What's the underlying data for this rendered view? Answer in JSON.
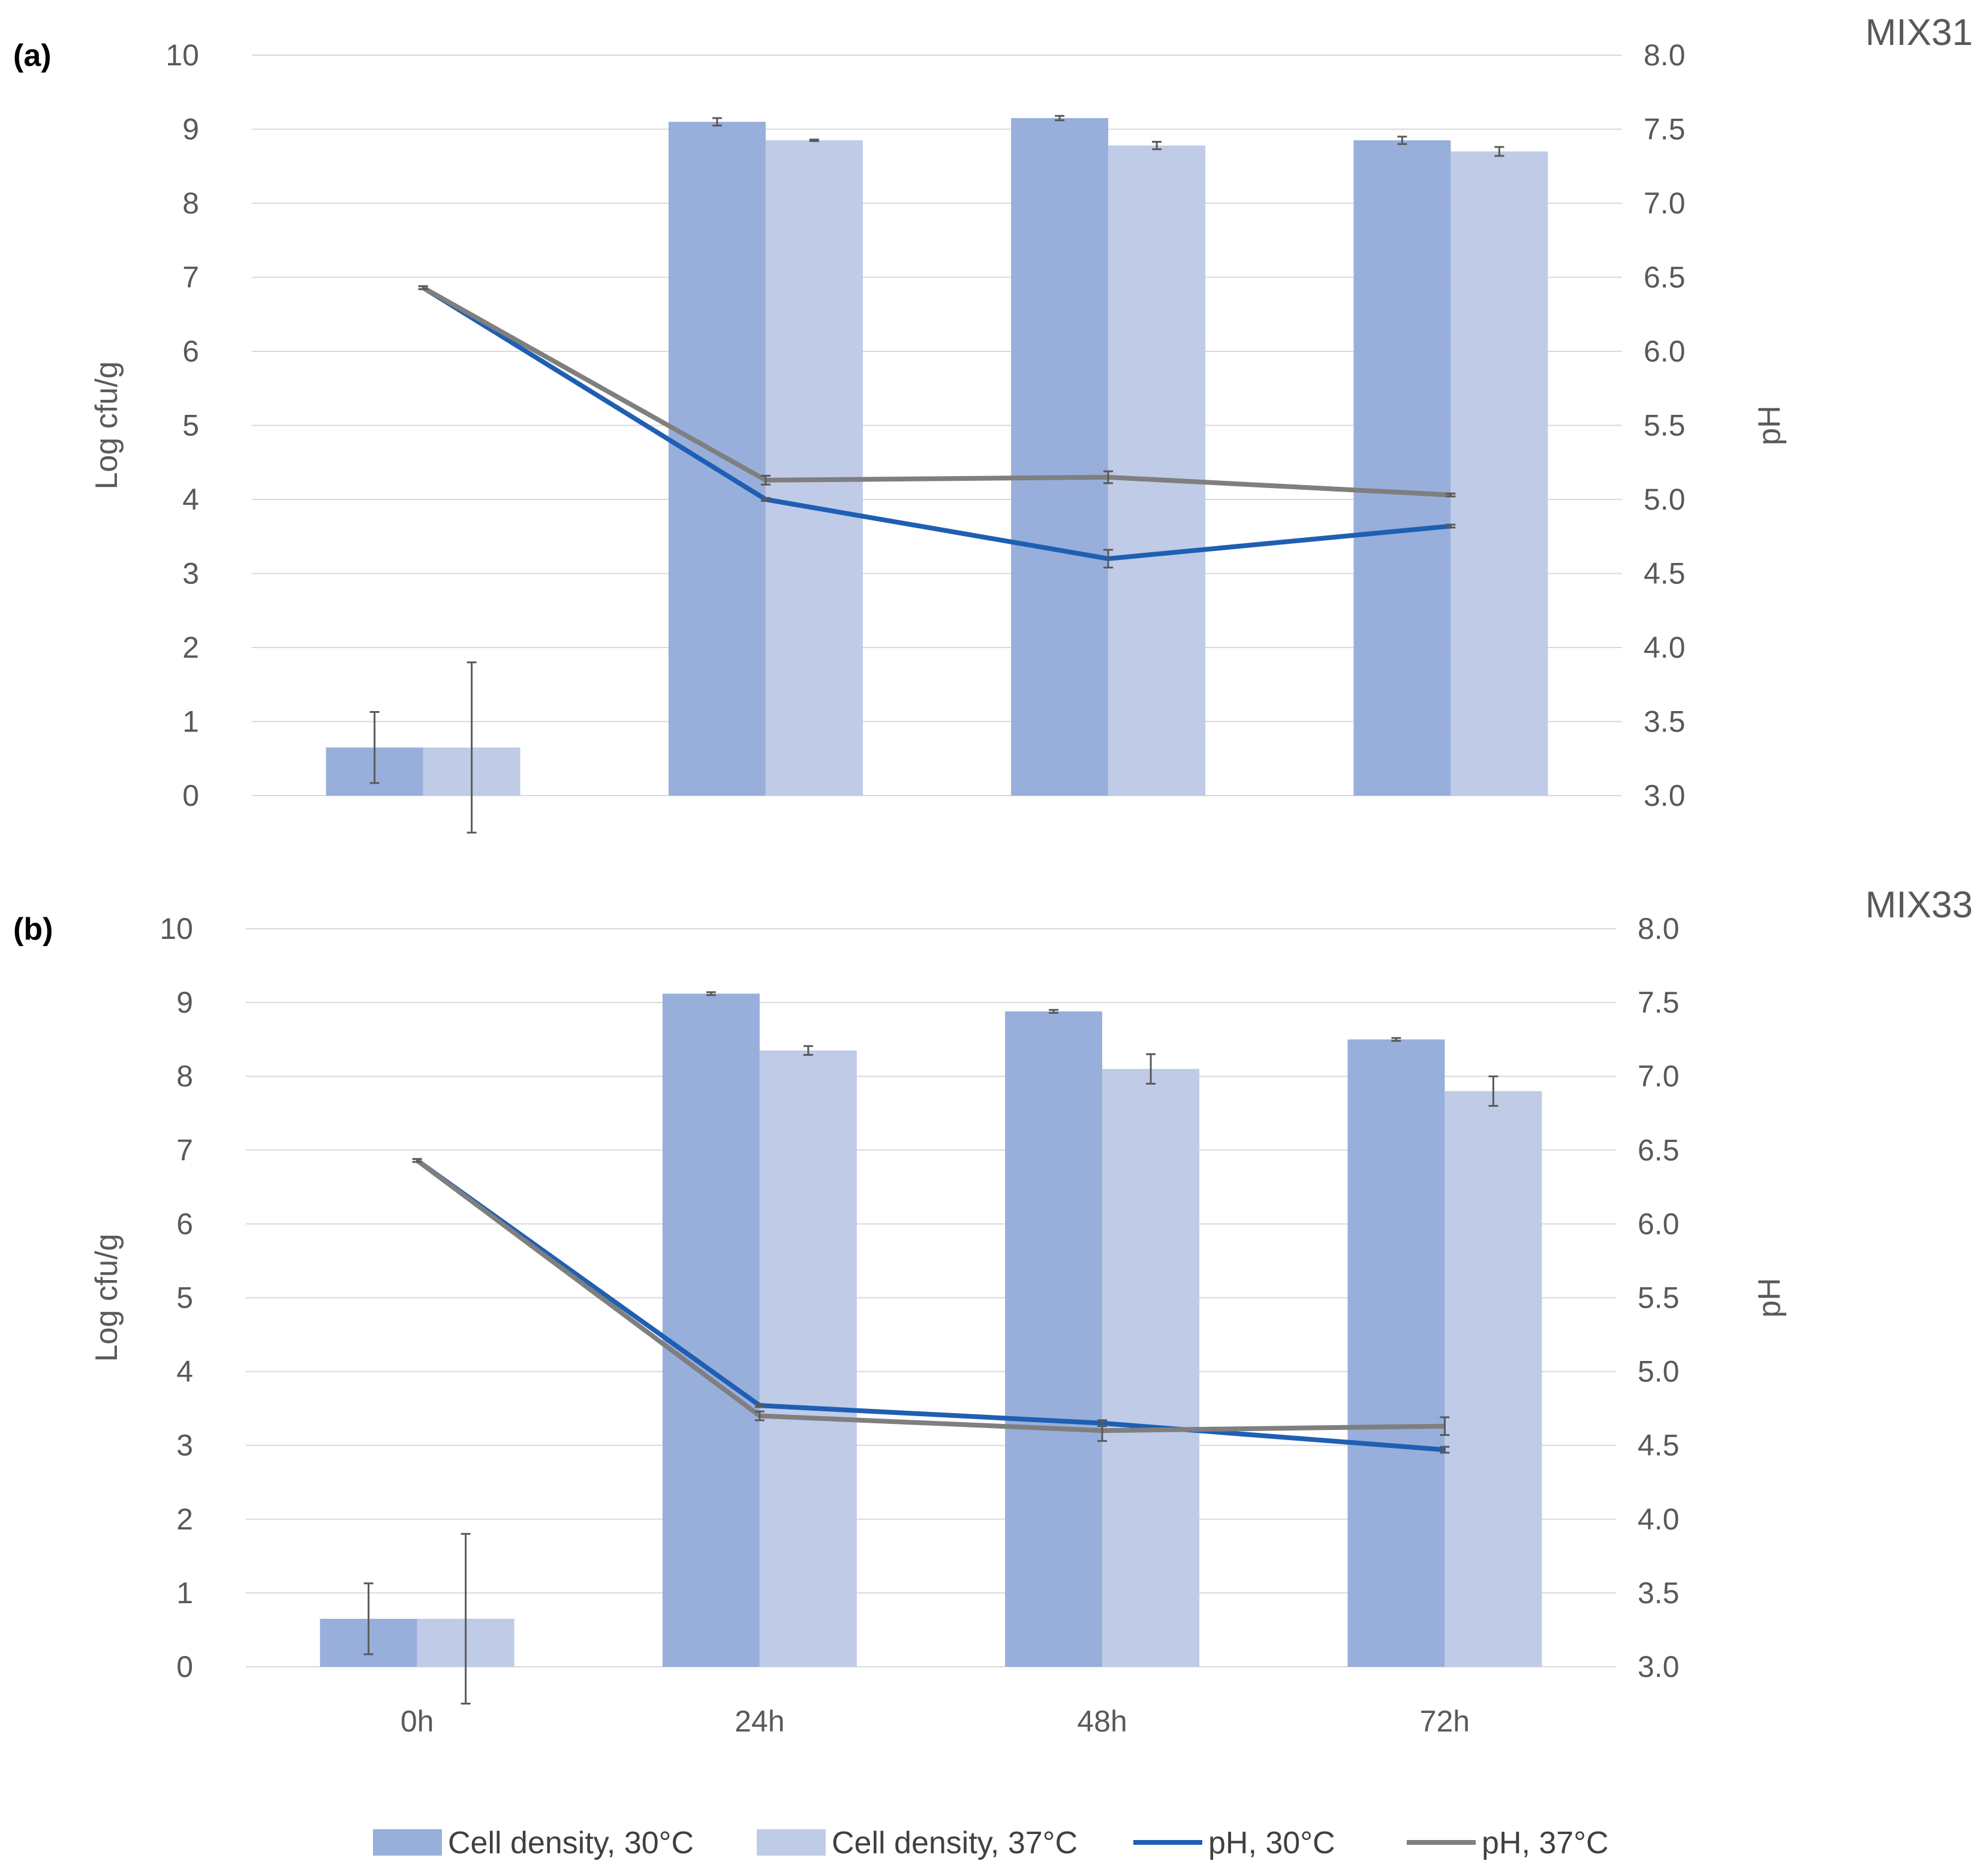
{
  "colors": {
    "cell_30": "#98afdb",
    "cell_37": "#bfcbe7",
    "ph_30": "#1f5fb3",
    "ph_37": "#7f7f7f",
    "error_bar": "#595959",
    "gridline": "#d9d9d9",
    "text": "#595959"
  },
  "legend": {
    "cell_30": "Cell density, 30°C",
    "cell_37": "Cell density, 37°C",
    "ph_30": "pH, 30°C",
    "ph_37": "pH, 37°C"
  },
  "chart_data": [
    {
      "type": "bar",
      "panel_label": "(a)",
      "title": "MIX31",
      "categories": [
        "0h",
        "24h",
        "48h",
        "72h"
      ],
      "ylabel": "Log cfu/g",
      "y2label": "pH",
      "ylim": [
        0,
        10
      ],
      "y2lim": [
        3.0,
        8.0
      ],
      "yticks": [
        "0",
        "1",
        "2",
        "3",
        "4",
        "5",
        "6",
        "7",
        "8",
        "9",
        "10"
      ],
      "y2ticks": [
        "3.0",
        "3.5",
        "4.0",
        "4.5",
        "5.0",
        "5.5",
        "6.0",
        "6.5",
        "7.0",
        "7.5",
        "8.0"
      ],
      "grid": true,
      "bar_series": [
        {
          "name": "Cell density, 30°C",
          "values": [
            0.65,
            9.1,
            9.15,
            8.85
          ],
          "errors": [
            0.48,
            0.05,
            0.03,
            0.05
          ]
        },
        {
          "name": "Cell density, 37°C",
          "values": [
            0.65,
            8.85,
            8.78,
            8.7
          ],
          "errors": [
            1.15,
            0.01,
            0.05,
            0.06
          ]
        }
      ],
      "line_series": [
        {
          "name": "pH, 30°C",
          "values": [
            6.43,
            5.0,
            4.6,
            4.82
          ],
          "errors": [
            0.01,
            0.01,
            0.06,
            0.01
          ]
        },
        {
          "name": "pH, 37°C",
          "values": [
            6.43,
            5.13,
            5.15,
            5.03
          ],
          "errors": [
            0.01,
            0.03,
            0.04,
            0.01
          ]
        }
      ]
    },
    {
      "type": "bar",
      "panel_label": "(b)",
      "title": "MIX33",
      "categories": [
        "0h",
        "24h",
        "48h",
        "72h"
      ],
      "ylabel": "Log cfu/g",
      "y2label": "pH",
      "ylim": [
        0,
        10
      ],
      "y2lim": [
        3.0,
        8.0
      ],
      "yticks": [
        "0",
        "1",
        "2",
        "3",
        "4",
        "5",
        "6",
        "7",
        "8",
        "9",
        "10"
      ],
      "y2ticks": [
        "3.0",
        "3.5",
        "4.0",
        "4.5",
        "5.0",
        "5.5",
        "6.0",
        "6.5",
        "7.0",
        "7.5",
        "8.0"
      ],
      "grid": true,
      "bar_series": [
        {
          "name": "Cell density, 30°C",
          "values": [
            0.65,
            9.12,
            8.88,
            8.5
          ],
          "errors": [
            0.48,
            0.02,
            0.02,
            0.02
          ]
        },
        {
          "name": "Cell density, 37°C",
          "values": [
            0.65,
            8.35,
            8.1,
            7.8
          ],
          "errors": [
            1.15,
            0.06,
            0.2,
            0.2
          ]
        }
      ],
      "line_series": [
        {
          "name": "pH, 30°C",
          "values": [
            6.43,
            4.77,
            4.65,
            4.47
          ],
          "errors": [
            0.01,
            0.01,
            0.02,
            0.02
          ]
        },
        {
          "name": "pH, 37°C",
          "values": [
            6.43,
            4.7,
            4.6,
            4.63
          ],
          "errors": [
            0.01,
            0.03,
            0.07,
            0.06
          ]
        }
      ]
    }
  ]
}
